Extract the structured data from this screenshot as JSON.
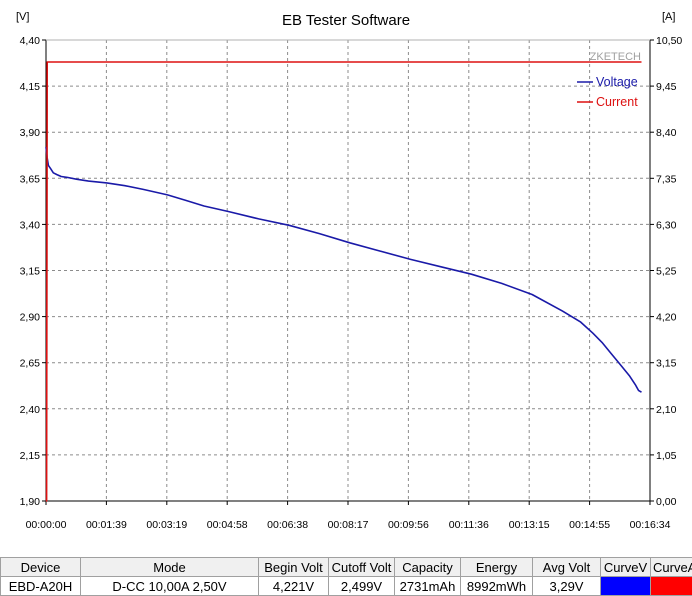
{
  "chart_data": {
    "type": "line",
    "title": "EB Tester Software",
    "left_unit": "[V]",
    "right_unit": "[A]",
    "watermark": "ZKETECH",
    "x_ticks": [
      "00:00:00",
      "00:01:39",
      "00:03:19",
      "00:04:58",
      "00:06:38",
      "00:08:17",
      "00:09:56",
      "00:11:36",
      "00:13:15",
      "00:14:55",
      "00:16:34"
    ],
    "xlim_seconds": [
      0,
      994
    ],
    "y_left_ticks": [
      "4,40",
      "4,15",
      "3,90",
      "3,65",
      "3,40",
      "3,15",
      "2,90",
      "2,65",
      "2,40",
      "2,15",
      "1,90"
    ],
    "y_left_range": [
      1.9,
      4.4
    ],
    "y_right_ticks": [
      "10,50",
      "9,45",
      "8,40",
      "7,35",
      "6,30",
      "5,25",
      "4,20",
      "3,15",
      "2,10",
      "1,05",
      "0,00"
    ],
    "y_right_range": [
      0.0,
      10.5
    ],
    "grid": true,
    "legend_position": "top-right",
    "series": [
      {
        "name": "Voltage",
        "axis": "left",
        "color": "#1a1aa8",
        "x": [
          0,
          2,
          4,
          8,
          12,
          18,
          25,
          35,
          50,
          70,
          100,
          130,
          160,
          200,
          230,
          260,
          300,
          350,
          400,
          450,
          500,
          550,
          600,
          650,
          700,
          750,
          800,
          850,
          880,
          900,
          915,
          930,
          945,
          960,
          970,
          975,
          980
        ],
        "y": [
          3.82,
          3.76,
          3.72,
          3.7,
          3.68,
          3.67,
          3.66,
          3.655,
          3.645,
          3.635,
          3.625,
          3.61,
          3.59,
          3.56,
          3.53,
          3.5,
          3.47,
          3.43,
          3.395,
          3.35,
          3.3,
          3.255,
          3.21,
          3.17,
          3.13,
          3.08,
          3.02,
          2.93,
          2.87,
          2.81,
          2.76,
          2.7,
          2.64,
          2.58,
          2.53,
          2.5,
          2.49
        ]
      },
      {
        "name": "Current",
        "axis": "right",
        "color": "#dd1111",
        "x": [
          0,
          1,
          2,
          980
        ],
        "y": [
          0.0,
          0.0,
          10.0,
          10.0
        ]
      }
    ]
  },
  "summary_table": {
    "headers": [
      "Device",
      "Mode",
      "Begin Volt",
      "Cutoff Volt",
      "Capacity",
      "Energy",
      "Avg Volt",
      "CurveV",
      "CurveA"
    ],
    "row": [
      "EBD-A20H",
      "D-CC  10,00A  2,50V",
      "4,221V",
      "2,499V",
      "2731mAh",
      "8992mWh",
      "3,29V",
      "",
      ""
    ],
    "curve_colors": [
      "#0000ff",
      "#ff0000"
    ]
  }
}
